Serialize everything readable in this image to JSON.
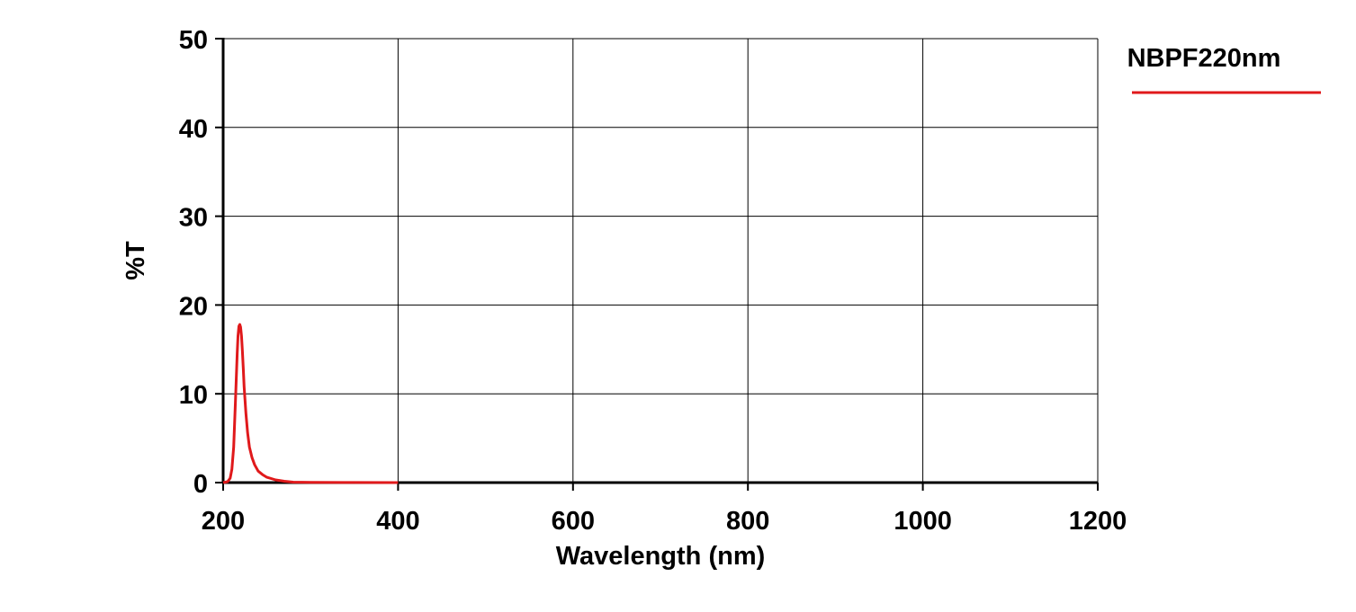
{
  "chart_data": {
    "type": "line",
    "title": "",
    "xlabel": "Wavelength (nm)",
    "ylabel": "%T",
    "xlim": [
      200,
      1200
    ],
    "ylim": [
      0,
      50
    ],
    "xticks": [
      "200",
      "400",
      "600",
      "800",
      "1000",
      "1200"
    ],
    "yticks": [
      "0",
      "10",
      "20",
      "30",
      "40",
      "50"
    ],
    "grid": true,
    "legend_position": "top-right",
    "series": [
      {
        "name": "NBPF220nm",
        "color": "#e0191b",
        "x": [
          200,
          205,
          208,
          210,
          212,
          214,
          216,
          217,
          218,
          219,
          220,
          221,
          222,
          223,
          224,
          226,
          228,
          230,
          233,
          236,
          240,
          245,
          250,
          260,
          270,
          280,
          300,
          350,
          400
        ],
        "y": [
          0,
          0.1,
          0.5,
          1.5,
          4,
          9,
          14.5,
          16.5,
          17.6,
          17.8,
          17.5,
          16.5,
          14.8,
          12.8,
          10.8,
          7.8,
          5.6,
          4.0,
          2.8,
          2.0,
          1.3,
          0.9,
          0.6,
          0.3,
          0.15,
          0.05,
          0.02,
          0.01,
          0
        ]
      }
    ]
  }
}
